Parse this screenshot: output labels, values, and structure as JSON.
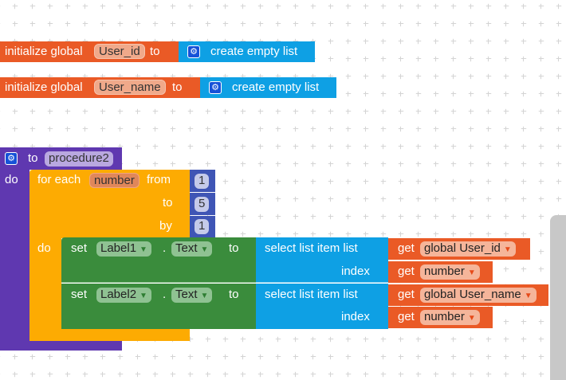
{
  "globals": [
    {
      "keyword": "initialize global",
      "name": "User_id",
      "to": "to",
      "value": "create empty list"
    },
    {
      "keyword": "initialize global",
      "name": "User_name",
      "to": "to",
      "value": "create empty list"
    }
  ],
  "procedure": {
    "to": "to",
    "name": "procedure2",
    "do": "do"
  },
  "loop": {
    "for_each": "for each",
    "var": "number",
    "from": "from",
    "to": "to",
    "by": "by",
    "do": "do",
    "from_value": "1",
    "to_value": "5",
    "by_value": "1"
  },
  "sets": [
    {
      "set": "set",
      "component": "Label1",
      "dot": ".",
      "property": "Text",
      "to": "to",
      "select": "select list item  list",
      "index": "index",
      "get": "get",
      "list_var": "global User_id",
      "index_var": "number"
    },
    {
      "set": "set",
      "component": "Label2",
      "dot": ".",
      "property": "Text",
      "to": "to",
      "select": "select list item  list",
      "index": "index",
      "get": "get",
      "list_var": "global User_name",
      "index_var": "number"
    }
  ],
  "colors": {
    "variable": "#ea5a26",
    "list": "#0ea0e4",
    "procedure": "#5f38b0",
    "control": "#fdab02",
    "component": "#3a8c3c",
    "math": "#3f55b5"
  }
}
